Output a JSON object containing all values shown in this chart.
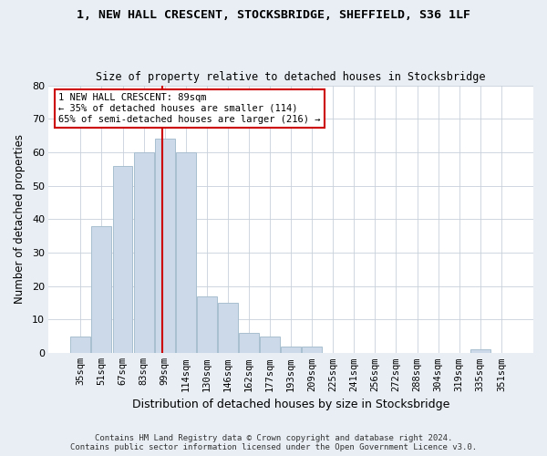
{
  "title_line1": "1, NEW HALL CRESCENT, STOCKSBRIDGE, SHEFFIELD, S36 1LF",
  "title_line2": "Size of property relative to detached houses in Stocksbridge",
  "xlabel": "Distribution of detached houses by size in Stocksbridge",
  "ylabel": "Number of detached properties",
  "categories": [
    "35sqm",
    "51sqm",
    "67sqm",
    "83sqm",
    "99sqm",
    "114sqm",
    "130sqm",
    "146sqm",
    "162sqm",
    "177sqm",
    "193sqm",
    "209sqm",
    "225sqm",
    "241sqm",
    "256sqm",
    "272sqm",
    "288sqm",
    "304sqm",
    "319sqm",
    "335sqm",
    "351sqm"
  ],
  "values": [
    5,
    38,
    56,
    60,
    64,
    60,
    17,
    15,
    6,
    5,
    2,
    2,
    0,
    0,
    0,
    0,
    0,
    0,
    0,
    1,
    0
  ],
  "bar_color": "#ccd9e8",
  "bar_edge_color": "#a8bfd0",
  "vline_color": "#cc0000",
  "ylim": [
    0,
    80
  ],
  "yticks": [
    0,
    10,
    20,
    30,
    40,
    50,
    60,
    70,
    80
  ],
  "annotation_text": "1 NEW HALL CRESCENT: 89sqm\n← 35% of detached houses are smaller (114)\n65% of semi-detached houses are larger (216) →",
  "annotation_box_color": "#ffffff",
  "annotation_box_edge": "#cc0000",
  "footer_line1": "Contains HM Land Registry data © Crown copyright and database right 2024.",
  "footer_line2": "Contains public sector information licensed under the Open Government Licence v3.0.",
  "bg_color": "#e8eef4",
  "plot_bg_color": "#ffffff",
  "grid_color": "#c8d0da"
}
